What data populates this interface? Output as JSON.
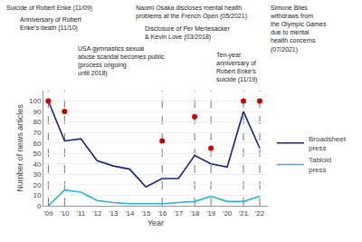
{
  "chart_data": {
    "type": "line",
    "x": [
      2009,
      2010,
      2011,
      2012,
      2013,
      2014,
      2015,
      2016,
      2017,
      2018,
      2019,
      2020,
      2021,
      2022
    ],
    "series": [
      {
        "name": "Broadsheet\npress",
        "color": "#1a237e",
        "values": [
          100,
          62,
          64,
          43,
          38,
          35,
          18,
          26,
          26,
          48,
          40,
          37,
          90,
          55
        ]
      },
      {
        "name": "Tabloid\npress",
        "color": "#29b6d4",
        "values": [
          0,
          15,
          13,
          5,
          3,
          2,
          2,
          2,
          3,
          4,
          9,
          4,
          4,
          9
        ]
      },
      {
        "type": "scatter",
        "marker": "circle",
        "color": "#cc0000",
        "x": [
          2009,
          2010,
          2016,
          2018,
          2019,
          2021,
          2022
        ],
        "values": [
          100,
          90,
          62,
          85,
          55,
          100,
          100
        ]
      }
    ],
    "event_lines": {
      "x": [
        2009,
        2010,
        2016,
        2018,
        2019,
        2021,
        2022
      ],
      "color": "#777777",
      "line_style": "dashed"
    },
    "xlabel": "Year",
    "ylabel": "Number of news articles",
    "xlim": [
      2008.7,
      2022.5
    ],
    "xticks": [
      {
        "value": 2009,
        "label": "'09"
      },
      {
        "value": 2010,
        "label": "'10"
      },
      {
        "value": 2011,
        "label": "'11"
      },
      {
        "value": 2012,
        "label": "'12"
      },
      {
        "value": 2013,
        "label": "'13"
      },
      {
        "value": 2014,
        "label": "'14"
      },
      {
        "value": 2015,
        "label": "'15"
      },
      {
        "value": 2016,
        "label": "'16"
      },
      {
        "value": 2017,
        "label": "'17"
      },
      {
        "value": 2018,
        "label": "'18"
      },
      {
        "value": 2019,
        "label": "'19"
      },
      {
        "value": 2020,
        "label": "'20"
      },
      {
        "value": 2021,
        "label": "'21"
      },
      {
        "value": 2022,
        "label": "'22"
      }
    ],
    "ylim": [
      0,
      110
    ],
    "yticks": [
      0,
      10,
      20,
      30,
      40,
      50,
      60,
      70,
      80,
      90,
      100
    ],
    "grid": "y",
    "legend": "right",
    "annotations": [
      "Suicide of Robert Enke (11/09)",
      "Anniversary of Robert\nEnke’s death (11/10)",
      "USA gymnastics sexual\nabuse scandal becomes public\n(process ongoing\nuntil 2018)",
      "Disclosure of Per Mertesacker\n& Kevin Love (03/2018)",
      "Naomi Osaka discloses mental health\nproblems at the French Open (05/2021)",
      "Ten-year\nanniversary of\nRobert Enke’s\nsuicide (11/19)",
      "Simone Biles\nwithdraws from\nthe Olympic Games\ndue to mental\nhealth concerns\n(07/2021)"
    ]
  }
}
